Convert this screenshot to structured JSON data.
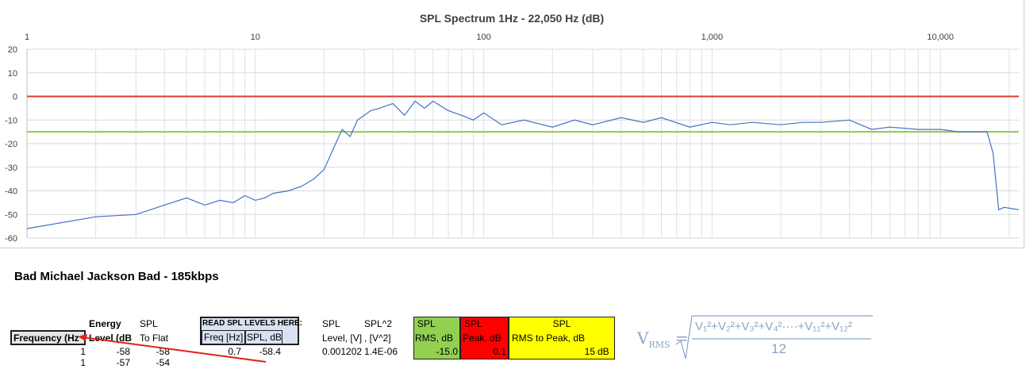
{
  "chart_data": {
    "type": "line",
    "title": "SPL Spectrum 1Hz - 22,050 Hz (dB)",
    "xscale": "log",
    "xlim": [
      1,
      22050
    ],
    "ylim": [
      -60,
      20
    ],
    "x_tick_labels": [
      "1",
      "10",
      "100",
      "1,000",
      "10,000"
    ],
    "x_tick_values": [
      1,
      10,
      100,
      1000,
      10000
    ],
    "y_tick_labels": [
      "20",
      "10",
      "0",
      "-10",
      "-20",
      "-30",
      "-40",
      "-50",
      "-60"
    ],
    "y_tick_values": [
      20,
      10,
      0,
      -10,
      -20,
      -30,
      -40,
      -50,
      -60
    ],
    "reference_lines": [
      {
        "y": 0,
        "color": "#e03a2e"
      },
      {
        "y": -15,
        "color": "#8fca4a"
      }
    ],
    "series": [
      {
        "color": "#4472c4",
        "x": [
          1,
          2,
          3,
          4,
          5,
          6,
          7,
          8,
          9,
          10,
          11,
          12,
          14,
          16,
          18,
          20,
          22,
          24,
          26,
          28,
          30,
          32,
          35,
          40,
          45,
          50,
          55,
          60,
          70,
          80,
          90,
          100,
          120,
          150,
          200,
          250,
          300,
          400,
          500,
          600,
          800,
          1000,
          1200,
          1500,
          2000,
          2500,
          3000,
          4000,
          5000,
          6000,
          8000,
          10000,
          12000,
          14000,
          16000,
          17000,
          18000,
          19000,
          22050
        ],
        "y": [
          -56,
          -51,
          -50,
          -46,
          -43,
          -46,
          -44,
          -45,
          -42,
          -44,
          -43,
          -41,
          -40,
          -38,
          -35,
          -31,
          -22,
          -14,
          -17,
          -10,
          -8,
          -6,
          -5,
          -3,
          -8,
          -2,
          -5,
          -2,
          -6,
          -8,
          -10,
          -7,
          -12,
          -10,
          -13,
          -10,
          -12,
          -9,
          -11,
          -9,
          -13,
          -11,
          -12,
          -11,
          -12,
          -11,
          -11,
          -10,
          -14,
          -13,
          -14,
          -14,
          -15,
          -15,
          -15,
          -24,
          -48,
          -47,
          -48
        ]
      }
    ]
  },
  "sheet": {
    "sheet_title": "Bad Michael Jackson Bad - 185kbps",
    "col_energy": "Energy",
    "col_spl1": "SPL",
    "read_levels": "READ SPL LEVELS HERE:",
    "col_spl2": "SPL",
    "col_spl_sq": "SPL^2",
    "frequency_hz": "Frequency (Hz",
    "level_db": "Level (dB",
    "to_flat": "To Flat",
    "freq_hz": "Freq [Hz]",
    "spl_db": "SPL, dB",
    "level_v": "Level, [V]",
    "v_sq": ", [V^2]",
    "row1_freq": "1",
    "row1_level": "-58",
    "row1_toflat": "-58",
    "row1_read_freq": "0.7",
    "row1_read_spl": "-58.4",
    "row1_v": "0.001202",
    "row1_vsq": "1.4E-06",
    "row2_freq": "1",
    "row2_level": "-57",
    "row2_toflat": "-54",
    "box_rms_line1": "SPL",
    "box_rms_line2": "RMS, dB",
    "box_rms_value": "-15.0",
    "box_peak_line1": "SPL",
    "box_peak_line2": "Peak, dB",
    "box_peak_value": "0.1",
    "box_r2p_line1": "SPL",
    "box_r2p_line2": "RMS to Peak, dB",
    "box_r2p_value": "15",
    "box_r2p_unit": "dB"
  },
  "formula": {
    "lhs": "V",
    "lhs_sub": "RMS",
    "equals": "=",
    "numerator": "V₁²+V₂²+V₃²+V₄²····+V₁₁²+V₁₂²",
    "denominator": "12"
  },
  "colors": {
    "rms_box": "#92d050",
    "peak_box": "#ff0000",
    "r2p_box": "#ffff00",
    "read_box": "#d9e1f2",
    "arrow": "#e0201b",
    "formula": "#8aa4c8"
  }
}
